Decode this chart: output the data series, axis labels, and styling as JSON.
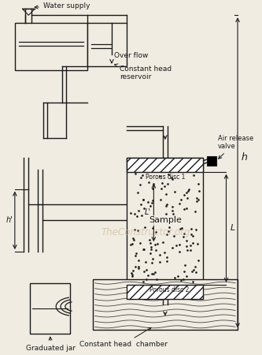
{
  "bg_color": "#f0ece2",
  "line_color": "#1a1a1a",
  "watermark_color": "#c8b89a",
  "watermark_text": "TheConstructor.org",
  "labels": {
    "water_supply": "Water supply",
    "over_flow": "Over flow",
    "constant_head_reservoir": "Constant head\nreservoir",
    "air_release_valve": "Air release\nvalve",
    "porous_disc1": "Porous disc 1",
    "porous_disc2": "Porous disc 2",
    "sample": "Sample",
    "constant_head_chamber": "Constant head  chamber",
    "graduated_jar": "Graduated jar",
    "h_label": "h",
    "h1_label": "h'",
    "L_label": "L",
    "L_prime_label": "L'"
  }
}
